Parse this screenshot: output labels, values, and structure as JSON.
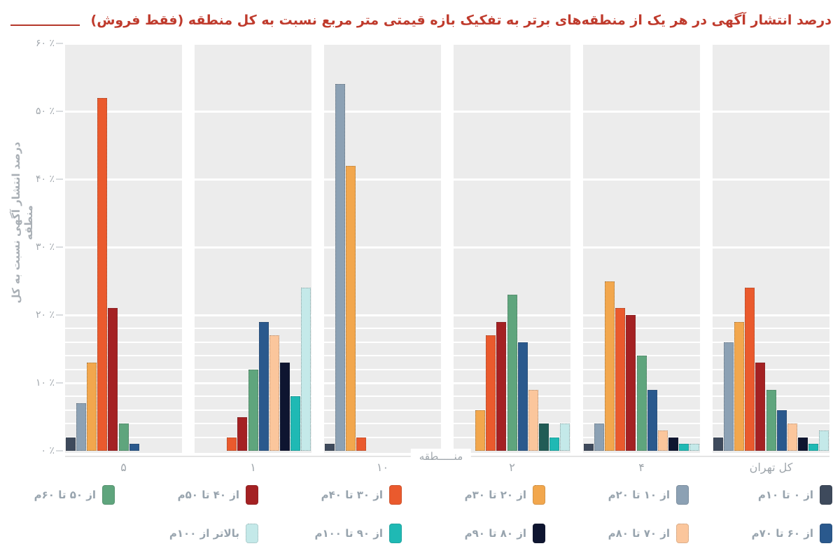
{
  "ui": {
    "background": "#ffffff",
    "band_background": "#ececec",
    "title_color": "#bf3a2c",
    "title_rule_color": "#b5372a",
    "axis_text_color": "#9fa6ac",
    "legend_text_color": "#98a4ae"
  },
  "chart_data": {
    "type": "bar",
    "title": "درصد  انتشار آگهی در هر یک از منطقه‌های برتر به تفکیک بازه قیمتی متر مربع نسبت به کل منطقه (فقط فروش)",
    "xlabel": "منـــــطقه",
    "ylabel": "درصد انتشار آگهی نسبت به کل منطقه",
    "ylim": [
      0,
      60
    ],
    "grid": "major white gridlines every 10%, fine white stripes every ~2% below 20%, light-gray band per category",
    "legend_position": "bottom, two rows, right-to-left",
    "y_ticks": [
      {
        "value": 0,
        "label": "۰ ٪"
      },
      {
        "value": 10,
        "label": "۱۰ ٪"
      },
      {
        "value": 20,
        "label": "۲۰ ٪"
      },
      {
        "value": 30,
        "label": "۳۰ ٪"
      },
      {
        "value": 40,
        "label": "۴۰ ٪"
      },
      {
        "value": 50,
        "label": "۵۰ ٪"
      },
      {
        "value": 60,
        "label": "۶۰ ٪"
      }
    ],
    "categories": [
      "۵",
      "۱",
      "۱۰",
      "۲",
      "۴",
      "کل تهران"
    ],
    "series": [
      {
        "name": "از ۰ تا ۱۰م",
        "color": "#3e4a5c",
        "values": [
          2,
          0,
          1,
          0,
          1,
          2
        ]
      },
      {
        "name": "از ۱۰ تا ۲۰م",
        "color": "#8ca1b4",
        "values": [
          7,
          0,
          54,
          0,
          4,
          16
        ]
      },
      {
        "name": "از ۲۰ تا ۳۰م",
        "color": "#f2a74d",
        "values": [
          13,
          0,
          42,
          6,
          25,
          19
        ]
      },
      {
        "name": "از ۳۰ تا ۴۰م",
        "color": "#ea5a2d",
        "values": [
          52,
          2,
          2,
          17,
          21,
          24
        ]
      },
      {
        "name": "از ۴۰ تا ۵۰م",
        "color": "#a42123",
        "values": [
          21,
          5,
          0,
          19,
          20,
          13
        ]
      },
      {
        "name": "از ۵۰ تا ۶۰م",
        "color": "#5fa57d",
        "values": [
          4,
          12,
          0,
          23,
          14,
          9
        ]
      },
      {
        "name": "از ۶۰ تا ۷۰م",
        "color": "#2a598d",
        "values": [
          1,
          19,
          0,
          16,
          9,
          6
        ]
      },
      {
        "name": "از ۷۰ تا ۸۰م",
        "color": "#fbc69c",
        "values": [
          0,
          17,
          0,
          9,
          3,
          4
        ]
      },
      {
        "name": "از ۸۰ تا ۹۰م",
        "color": "#0e1530",
        "values": [
          0,
          13,
          0,
          4,
          2,
          2
        ]
      },
      {
        "name": "از ۹۰ تا ۱۰۰م",
        "color": "#1fb9b4",
        "values": [
          0,
          8,
          0,
          2,
          1,
          1
        ]
      },
      {
        "name": "بالاتر از ۱۰۰م",
        "color": "#c4e9e9",
        "values": [
          0,
          24,
          0,
          4,
          1,
          3
        ]
      }
    ],
    "color_overrides": [
      {
        "category": "۲",
        "series": "از ۸۰ تا ۹۰م",
        "color": "#215c56"
      }
    ]
  }
}
